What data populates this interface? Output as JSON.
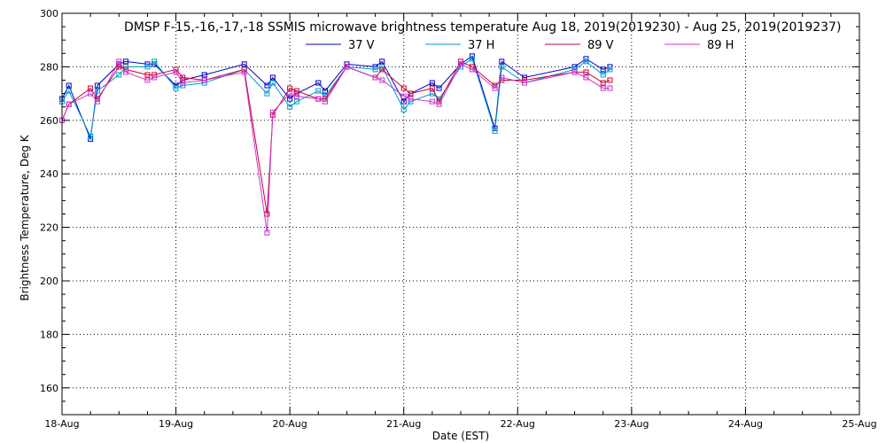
{
  "chart_data": {
    "type": "line",
    "title": "DMSP F-15,-16,-17,-18 SSMIS microwave brightness temperature Aug 18, 2019(2019230) - Aug 25, 2019(2019237)",
    "xlabel": "Date (EST)",
    "ylabel": "Brightness Temperature, Deg K",
    "xlim": [
      0,
      7
    ],
    "ylim": [
      150,
      300
    ],
    "grid": true,
    "legend_position": "top-center",
    "x_ticks": [
      {
        "value": 0,
        "label": "18-Aug"
      },
      {
        "value": 1,
        "label": "19-Aug"
      },
      {
        "value": 2,
        "label": "20-Aug"
      },
      {
        "value": 3,
        "label": "21-Aug"
      },
      {
        "value": 4,
        "label": "22-Aug"
      },
      {
        "value": 5,
        "label": "23-Aug"
      },
      {
        "value": 6,
        "label": "24-Aug"
      },
      {
        "value": 7,
        "label": "25-Aug"
      }
    ],
    "y_ticks": [
      160,
      180,
      200,
      220,
      240,
      260,
      280,
      300
    ],
    "series": [
      {
        "name": "37 V",
        "color": "#0000cc",
        "x": [
          0.0,
          0.06,
          0.25,
          0.31,
          0.5,
          0.56,
          0.75,
          0.81,
          1.0,
          1.06,
          1.25,
          1.6,
          1.8,
          1.85,
          2.0,
          2.06,
          2.25,
          2.31,
          2.5,
          2.75,
          2.81,
          3.0,
          3.06,
          3.25,
          3.31,
          3.5,
          3.6,
          3.8,
          3.86,
          4.06,
          4.5,
          4.6,
          4.75,
          4.81
        ],
        "y": [
          268,
          273,
          253,
          273,
          281,
          282,
          281,
          281,
          273,
          275,
          277,
          281,
          273,
          276,
          268,
          270,
          274,
          271,
          281,
          280,
          282,
          267,
          270,
          274,
          272,
          281,
          284,
          257,
          282,
          276,
          280,
          283,
          279,
          280
        ]
      },
      {
        "name": "37 H",
        "color": "#0099cc",
        "x": [
          0.0,
          0.06,
          0.25,
          0.31,
          0.5,
          0.56,
          0.75,
          0.81,
          1.0,
          1.06,
          1.25,
          1.6,
          1.8,
          1.85,
          2.0,
          2.06,
          2.25,
          2.31,
          2.5,
          2.75,
          2.81,
          3.0,
          3.06,
          3.25,
          3.31,
          3.5,
          3.6,
          3.8,
          3.86,
          4.06,
          4.5,
          4.6,
          4.75,
          4.81
        ],
        "y": [
          267,
          271,
          254,
          271,
          277,
          280,
          280,
          282,
          272,
          273,
          274,
          279,
          270,
          274,
          265,
          267,
          271,
          269,
          280,
          279,
          280,
          264,
          267,
          270,
          268,
          280,
          283,
          256,
          280,
          274,
          279,
          282,
          277,
          279
        ]
      },
      {
        "name": "89 V",
        "color": "#cc0033",
        "x": [
          0.0,
          0.06,
          0.25,
          0.31,
          0.5,
          0.56,
          0.75,
          0.81,
          1.0,
          1.06,
          1.25,
          1.6,
          1.8,
          1.85,
          2.0,
          2.06,
          2.25,
          2.31,
          2.5,
          2.75,
          2.81,
          3.0,
          3.06,
          3.25,
          3.31,
          3.5,
          3.6,
          3.8,
          3.86,
          4.06,
          4.5,
          4.6,
          4.75,
          4.81
        ],
        "y": [
          260,
          266,
          272,
          268,
          280,
          279,
          277,
          277,
          279,
          276,
          275,
          279,
          225,
          262,
          272,
          271,
          268,
          268,
          280,
          276,
          279,
          272,
          270,
          272,
          267,
          282,
          280,
          273,
          275,
          275,
          278,
          278,
          274,
          275
        ]
      },
      {
        "name": "89 H",
        "color": "#cc33cc",
        "x": [
          0.0,
          0.06,
          0.25,
          0.31,
          0.5,
          0.56,
          0.75,
          0.81,
          1.0,
          1.06,
          1.25,
          1.6,
          1.8,
          1.85,
          2.0,
          2.06,
          2.25,
          2.31,
          2.5,
          2.75,
          2.81,
          3.0,
          3.06,
          3.25,
          3.31,
          3.5,
          3.6,
          3.8,
          3.86,
          4.06,
          4.5,
          4.6,
          4.75,
          4.81
        ],
        "y": [
          260,
          266,
          270,
          267,
          282,
          278,
          275,
          276,
          278,
          274,
          275,
          278,
          218,
          263,
          270,
          269,
          268,
          267,
          280,
          276,
          275,
          269,
          268,
          267,
          266,
          281,
          279,
          272,
          276,
          274,
          278,
          276,
          272,
          272
        ]
      }
    ]
  }
}
